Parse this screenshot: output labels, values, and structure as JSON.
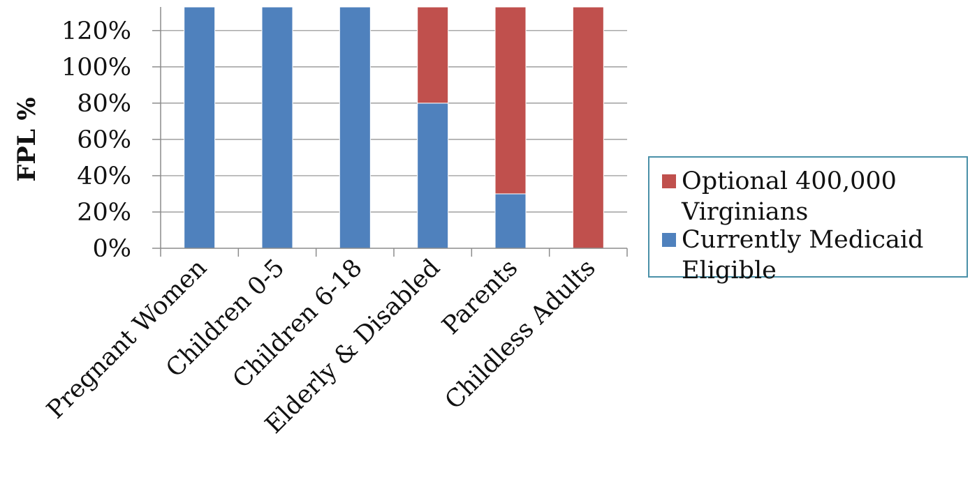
{
  "chart_data": {
    "type": "bar",
    "stacked": true,
    "categories": [
      "Pregnant Women",
      "Children 0-5",
      "Children 6-18",
      "Elderly & Disabled",
      "Parents",
      "Childless Adults"
    ],
    "series": [
      {
        "name": "Currently Medicaid Eligible",
        "color": "#4f81bd",
        "values": [
          133,
          133,
          133,
          80,
          30,
          0
        ]
      },
      {
        "name": "Optional 400,000 Virginians",
        "color": "#c0504d",
        "values": [
          0,
          0,
          0,
          53,
          103,
          133
        ]
      }
    ],
    "ylabel": "FPL %",
    "xlabel": "",
    "ylim": [
      0,
      133
    ],
    "yticks": [
      0,
      20,
      40,
      60,
      80,
      100,
      120
    ],
    "ytick_labels": [
      "0%",
      "20%",
      "40%",
      "60%",
      "80%",
      "100%",
      "120%"
    ],
    "grid": true,
    "legend_position": "right",
    "legend_order": [
      "Optional 400,000 Virginians",
      "Currently Medicaid Eligible"
    ]
  }
}
